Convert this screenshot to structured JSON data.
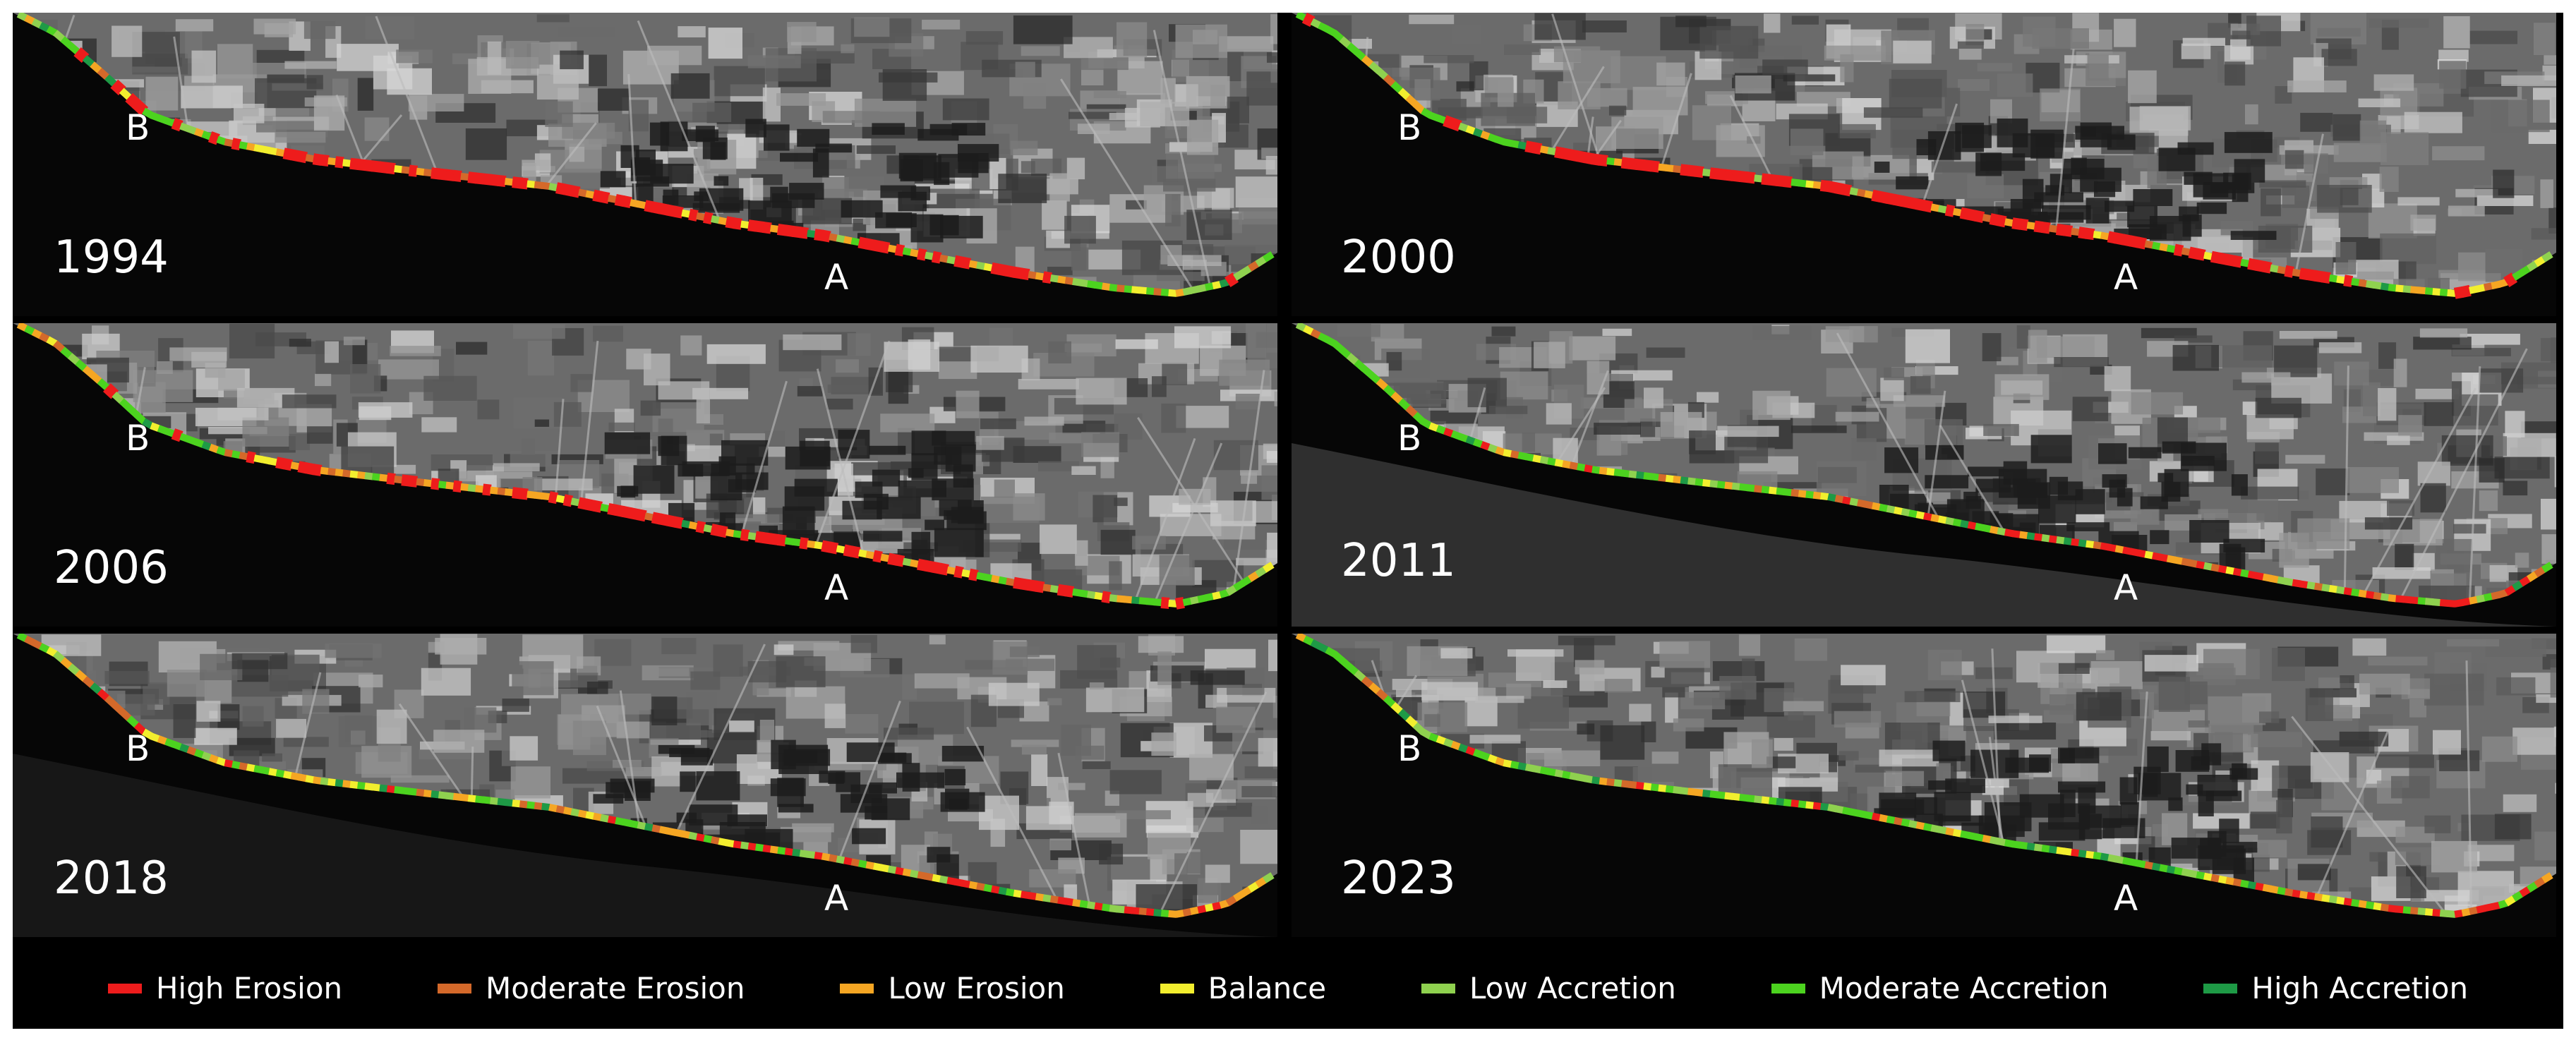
{
  "panels": [
    {
      "year": "1994",
      "label_a": "A",
      "label_b": "B",
      "scheme": "erosion"
    },
    {
      "year": "2000",
      "label_a": "A",
      "label_b": "B",
      "scheme": "erosion"
    },
    {
      "year": "2006",
      "label_a": "A",
      "label_b": "B",
      "scheme": "erosion"
    },
    {
      "year": "2011",
      "label_a": "A",
      "label_b": "B",
      "scheme": "mixed"
    },
    {
      "year": "2018",
      "label_a": "A",
      "label_b": "B",
      "scheme": "mixed"
    },
    {
      "year": "2023",
      "label_a": "A",
      "label_b": "B",
      "scheme": "accretion"
    }
  ],
  "legend": [
    {
      "label": "High Erosion",
      "color": "#ee1c1c"
    },
    {
      "label": "Moderate Erosion",
      "color": "#d4692a"
    },
    {
      "label": "Low Erosion",
      "color": "#f5a623"
    },
    {
      "label": "Balance",
      "color": "#f2ee2e"
    },
    {
      "label": "Low Accretion",
      "color": "#8fd14f"
    },
    {
      "label": "Moderate Accretion",
      "color": "#4cd31f"
    },
    {
      "label": "High Accretion",
      "color": "#1e9a46"
    }
  ]
}
